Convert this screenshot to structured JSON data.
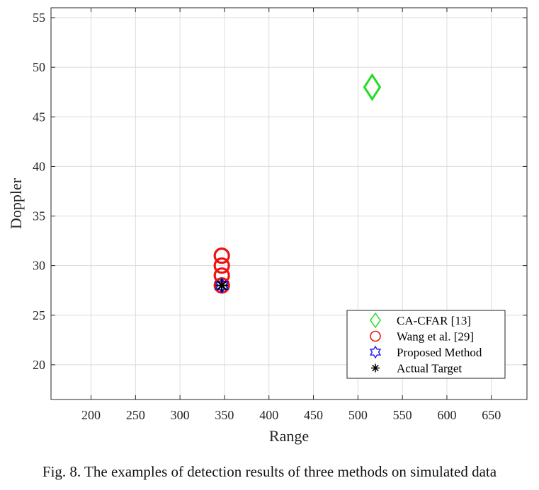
{
  "caption": "Fig. 8.  The examples of detection results of three methods on simulated data",
  "chart_data": {
    "type": "scatter",
    "xlabel": "Range",
    "ylabel": "Doppler",
    "xlim": [
      155,
      690
    ],
    "ylim": [
      16.5,
      56
    ],
    "xticks": [
      200,
      250,
      300,
      350,
      400,
      450,
      500,
      550,
      600,
      650
    ],
    "yticks": [
      20,
      25,
      30,
      35,
      40,
      45,
      50,
      55
    ],
    "grid": true,
    "legend_position": "bottom-right",
    "series": [
      {
        "name": "CA-CFAR  [13]",
        "marker": "diamond",
        "color": "#22dd22",
        "points": [
          [
            516,
            48
          ]
        ]
      },
      {
        "name": "Wang et al. [29]",
        "marker": "circle",
        "color": "#ee1111",
        "points": [
          [
            347,
            31
          ],
          [
            347,
            30
          ],
          [
            347,
            29
          ],
          [
            347,
            28
          ]
        ]
      },
      {
        "name": "Proposed Method",
        "marker": "hexagram",
        "color": "#1a1aee",
        "points": [
          [
            347,
            28
          ]
        ]
      },
      {
        "name": "Actual Target",
        "marker": "asterisk",
        "color": "#000000",
        "points": [
          [
            347,
            28
          ]
        ]
      }
    ]
  }
}
